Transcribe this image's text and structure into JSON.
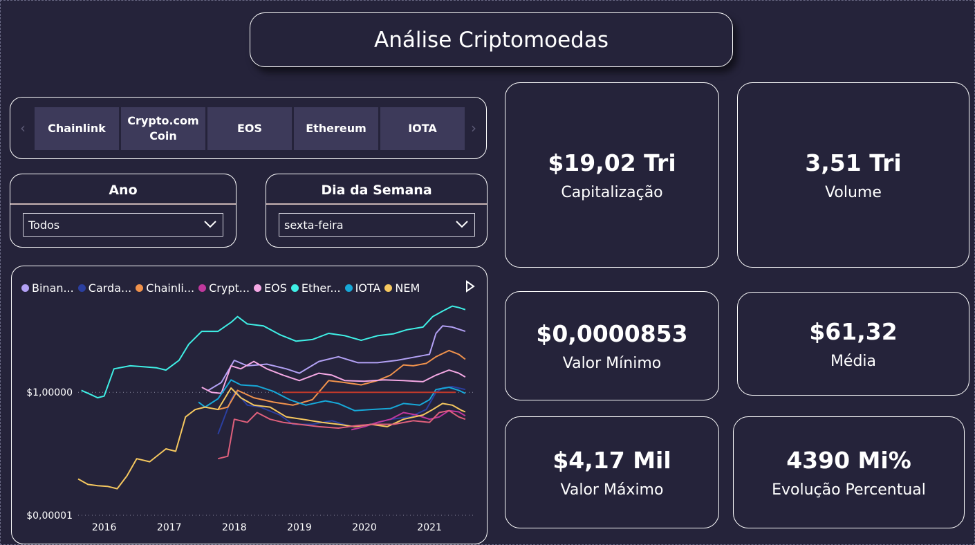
{
  "title": "Análise Criptomoedas",
  "slicer": {
    "tiles": [
      "Chainlink",
      "Crypto.com\nCoin",
      "EOS",
      "Ethereum",
      "IOTA"
    ],
    "prev_icon": "chevron-left-icon",
    "next_icon": "chevron-right-icon"
  },
  "filters": {
    "year": {
      "title": "Ano",
      "value": "Todos"
    },
    "weekday": {
      "title": "Dia da Semana",
      "value": "sexta-feira"
    }
  },
  "kpis": {
    "cap": {
      "value": "$19,02 Tri",
      "label": "Capitalização"
    },
    "volume": {
      "value": "3,51 Tri",
      "label": "Volume"
    },
    "min": {
      "value": "$0,0000853",
      "label": "Valor Mínimo"
    },
    "avg": {
      "value": "$61,32",
      "label": "Média"
    },
    "max": {
      "value": "$4,17 Mil",
      "label": "Valor Máximo"
    },
    "evo": {
      "value": "4390 Mi%",
      "label": "Evolução Percentual"
    }
  },
  "chart_data": {
    "type": "line",
    "yscale": "log",
    "yticks": [
      {
        "value": 1,
        "label": "$1,00000"
      },
      {
        "value": 1e-05,
        "label": "$0,00001"
      }
    ],
    "ylim": [
      1e-05,
      10000
    ],
    "xlim": [
      2015.6,
      2021.7
    ],
    "xticks": [
      2016,
      2017,
      2018,
      2019,
      2020,
      2021
    ],
    "reference_line": {
      "value": 1,
      "color": "#c0392b",
      "x_range": [
        2018.75,
        2021.4
      ]
    },
    "legend": {
      "position": "top",
      "truncated": true
    },
    "series": [
      {
        "name": "Binan...",
        "color": "#b3a1f5",
        "points": [
          [
            2017.6,
            1.2
          ],
          [
            2017.8,
            2.5
          ],
          [
            2018.0,
            20
          ],
          [
            2018.2,
            12
          ],
          [
            2018.5,
            14
          ],
          [
            2018.8,
            9
          ],
          [
            2019.0,
            6
          ],
          [
            2019.3,
            18
          ],
          [
            2019.6,
            28
          ],
          [
            2019.9,
            16
          ],
          [
            2020.2,
            16
          ],
          [
            2020.5,
            20
          ],
          [
            2020.8,
            28
          ],
          [
            2021.0,
            35
          ],
          [
            2021.1,
            250
          ],
          [
            2021.2,
            500
          ],
          [
            2021.35,
            450
          ],
          [
            2021.55,
            300
          ]
        ]
      },
      {
        "name": "Carda...",
        "color": "#2b3fa0",
        "points": [
          [
            2017.75,
            0.02
          ],
          [
            2017.85,
            0.1
          ],
          [
            2017.95,
            0.5
          ],
          [
            2018.02,
            1.1
          ],
          [
            2018.2,
            0.3
          ],
          [
            2018.4,
            0.25
          ],
          [
            2018.7,
            0.12
          ],
          [
            2018.9,
            0.05
          ],
          [
            2019.2,
            0.05
          ],
          [
            2019.5,
            0.07
          ],
          [
            2019.8,
            0.04
          ],
          [
            2020.1,
            0.05
          ],
          [
            2020.4,
            0.08
          ],
          [
            2020.7,
            0.1
          ],
          [
            2020.95,
            0.2
          ],
          [
            2021.1,
            1.0
          ],
          [
            2021.2,
            1.5
          ],
          [
            2021.35,
            1.7
          ],
          [
            2021.55,
            1.3
          ]
        ]
      },
      {
        "name": "Chainli...",
        "color": "#f0924c",
        "points": [
          [
            2017.75,
            0.2
          ],
          [
            2017.9,
            0.25
          ],
          [
            2018.05,
            1.2
          ],
          [
            2018.3,
            0.6
          ],
          [
            2018.6,
            0.4
          ],
          [
            2018.9,
            0.3
          ],
          [
            2019.2,
            0.5
          ],
          [
            2019.45,
            3
          ],
          [
            2019.7,
            2.5
          ],
          [
            2019.95,
            2
          ],
          [
            2020.2,
            3
          ],
          [
            2020.4,
            5
          ],
          [
            2020.6,
            13
          ],
          [
            2020.75,
            12
          ],
          [
            2020.95,
            15
          ],
          [
            2021.1,
            28
          ],
          [
            2021.3,
            50
          ],
          [
            2021.45,
            35
          ],
          [
            2021.55,
            22
          ]
        ]
      },
      {
        "name": "Crypt...",
        "color": "#c0389d",
        "points": [
          [
            2019.8,
            0.03
          ],
          [
            2020.0,
            0.04
          ],
          [
            2020.2,
            0.06
          ],
          [
            2020.4,
            0.08
          ],
          [
            2020.6,
            0.15
          ],
          [
            2020.8,
            0.12
          ],
          [
            2021.0,
            0.08
          ],
          [
            2021.15,
            0.1
          ],
          [
            2021.3,
            0.18
          ],
          [
            2021.45,
            0.16
          ],
          [
            2021.55,
            0.11
          ]
        ]
      },
      {
        "name": "EOS",
        "color": "#f4a8e4",
        "points": [
          [
            2017.5,
            1.6
          ],
          [
            2017.65,
            1.0
          ],
          [
            2017.8,
            0.9
          ],
          [
            2017.95,
            12
          ],
          [
            2018.1,
            9
          ],
          [
            2018.3,
            18
          ],
          [
            2018.5,
            9
          ],
          [
            2018.75,
            5
          ],
          [
            2019.0,
            3
          ],
          [
            2019.3,
            6
          ],
          [
            2019.5,
            5
          ],
          [
            2019.7,
            3
          ],
          [
            2020.0,
            2.8
          ],
          [
            2020.3,
            3.2
          ],
          [
            2020.6,
            3
          ],
          [
            2020.9,
            2.7
          ],
          [
            2021.1,
            5
          ],
          [
            2021.3,
            8
          ],
          [
            2021.45,
            6
          ],
          [
            2021.55,
            4.2
          ]
        ]
      },
      {
        "name": "Ether...",
        "color": "#3ff0e6",
        "points": [
          [
            2015.65,
            1.2
          ],
          [
            2015.8,
            0.8
          ],
          [
            2015.9,
            0.6
          ],
          [
            2016.0,
            0.7
          ],
          [
            2016.15,
            9
          ],
          [
            2016.4,
            12
          ],
          [
            2016.6,
            11
          ],
          [
            2016.8,
            10
          ],
          [
            2016.95,
            8
          ],
          [
            2017.15,
            20
          ],
          [
            2017.3,
            90
          ],
          [
            2017.5,
            300
          ],
          [
            2017.75,
            300
          ],
          [
            2017.95,
            700
          ],
          [
            2018.05,
            1200
          ],
          [
            2018.2,
            600
          ],
          [
            2018.45,
            500
          ],
          [
            2018.7,
            220
          ],
          [
            2018.95,
            120
          ],
          [
            2019.2,
            140
          ],
          [
            2019.45,
            250
          ],
          [
            2019.7,
            200
          ],
          [
            2019.95,
            130
          ],
          [
            2020.2,
            200
          ],
          [
            2020.45,
            240
          ],
          [
            2020.65,
            350
          ],
          [
            2020.9,
            450
          ],
          [
            2021.05,
            1200
          ],
          [
            2021.2,
            2000
          ],
          [
            2021.35,
            3200
          ],
          [
            2021.45,
            2800
          ],
          [
            2021.55,
            2300
          ]
        ]
      },
      {
        "name": "IOTA",
        "color": "#17a8d8",
        "points": [
          [
            2017.45,
            0.4
          ],
          [
            2017.55,
            0.25
          ],
          [
            2017.75,
            0.55
          ],
          [
            2017.95,
            3.2
          ],
          [
            2018.1,
            2
          ],
          [
            2018.35,
            1.8
          ],
          [
            2018.6,
            1.1
          ],
          [
            2018.85,
            0.5
          ],
          [
            2019.1,
            0.3
          ],
          [
            2019.4,
            0.45
          ],
          [
            2019.6,
            0.35
          ],
          [
            2019.85,
            0.18
          ],
          [
            2020.1,
            0.2
          ],
          [
            2020.4,
            0.22
          ],
          [
            2020.6,
            0.35
          ],
          [
            2020.85,
            0.3
          ],
          [
            2021.0,
            0.5
          ],
          [
            2021.1,
            1.3
          ],
          [
            2021.3,
            1.6
          ],
          [
            2021.45,
            1.2
          ],
          [
            2021.55,
            0.9
          ]
        ]
      },
      {
        "name": "NEM",
        "color": "#f6c85f",
        "points": [
          [
            2015.6,
            0.0003
          ],
          [
            2015.75,
            0.00018
          ],
          [
            2015.9,
            0.00016
          ],
          [
            2016.05,
            0.00015
          ],
          [
            2016.2,
            0.00012
          ],
          [
            2016.35,
            0.0004
          ],
          [
            2016.5,
            0.002
          ],
          [
            2016.7,
            0.0015
          ],
          [
            2016.95,
            0.005
          ],
          [
            2017.1,
            0.004
          ],
          [
            2017.25,
            0.1
          ],
          [
            2017.4,
            0.2
          ],
          [
            2017.55,
            0.25
          ],
          [
            2017.75,
            0.2
          ],
          [
            2017.95,
            1.5
          ],
          [
            2018.1,
            0.6
          ],
          [
            2018.3,
            0.3
          ],
          [
            2018.55,
            0.25
          ],
          [
            2018.8,
            0.1
          ],
          [
            2019.05,
            0.08
          ],
          [
            2019.35,
            0.06
          ],
          [
            2019.6,
            0.05
          ],
          [
            2019.85,
            0.04
          ],
          [
            2020.1,
            0.05
          ],
          [
            2020.35,
            0.04
          ],
          [
            2020.6,
            0.08
          ],
          [
            2020.9,
            0.12
          ],
          [
            2021.05,
            0.2
          ],
          [
            2021.2,
            0.35
          ],
          [
            2021.35,
            0.3
          ],
          [
            2021.5,
            0.18
          ],
          [
            2021.55,
            0.16
          ]
        ]
      },
      {
        "name": "",
        "color": "#e0607c",
        "points": [
          [
            2017.75,
            0.002
          ],
          [
            2017.9,
            0.0025
          ],
          [
            2018.0,
            0.08
          ],
          [
            2018.2,
            0.06
          ],
          [
            2018.35,
            0.15
          ],
          [
            2018.55,
            0.08
          ],
          [
            2018.75,
            0.06
          ],
          [
            2019.0,
            0.05
          ],
          [
            2019.3,
            0.04
          ],
          [
            2019.6,
            0.035
          ],
          [
            2019.9,
            0.045
          ],
          [
            2020.15,
            0.05
          ],
          [
            2020.45,
            0.05
          ],
          [
            2020.75,
            0.07
          ],
          [
            2021.0,
            0.06
          ],
          [
            2021.15,
            0.15
          ],
          [
            2021.3,
            0.18
          ],
          [
            2021.45,
            0.1
          ],
          [
            2021.55,
            0.08
          ]
        ]
      }
    ]
  }
}
